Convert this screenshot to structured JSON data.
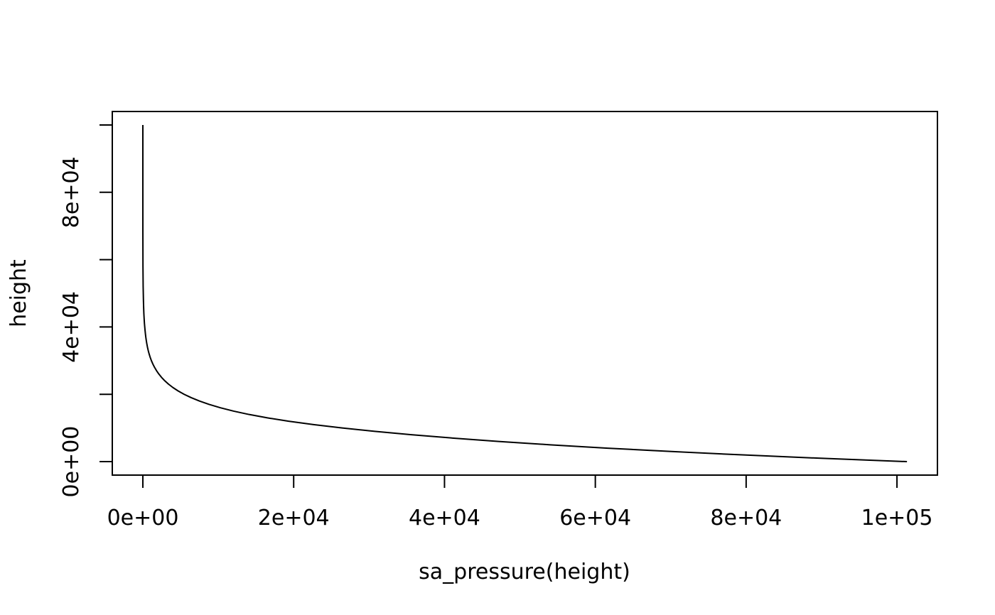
{
  "chart_data": {
    "type": "line",
    "title": "",
    "xlabel": "sa_pressure(height)",
    "ylabel": "height",
    "xlim": [
      -4052.5,
      105366.4
    ],
    "ylim": [
      -4000,
      104000
    ],
    "grid": false,
    "legend": "none",
    "x_ticks": [
      {
        "value": 0,
        "label": "0e+00"
      },
      {
        "value": 20000,
        "label": "2e+04"
      },
      {
        "value": 40000,
        "label": "4e+04"
      },
      {
        "value": 60000,
        "label": "6e+04"
      },
      {
        "value": 80000,
        "label": "8e+04"
      },
      {
        "value": 100000,
        "label": "1e+05"
      }
    ],
    "y_ticks": [
      {
        "value": 0,
        "label": "0e+00"
      },
      {
        "value": 20000,
        "label": ""
      },
      {
        "value": 40000,
        "label": "4e+04"
      },
      {
        "value": 60000,
        "label": ""
      },
      {
        "value": 80000,
        "label": "8e+04"
      },
      {
        "value": 100000,
        "label": ""
      }
    ],
    "series": [
      {
        "color": "#000000",
        "x": [
          101325,
          89875,
          79495,
          70108,
          61640,
          54019,
          47181,
          41060,
          35599,
          30742,
          26436,
          22632,
          19330,
          16510,
          14102,
          12045,
          10287,
          8787,
          7505,
          6410,
          5475,
          4677,
          3995,
          3412,
          2915,
          2490,
          2127,
          1817,
          1552,
          1326,
          1132,
          969,
          831,
          713,
          612,
          526,
          453,
          390,
          337,
          291,
          252,
          212,
          170,
          133,
          101,
          76,
          40,
          15,
          3,
          0.3,
          0
        ],
        "y": [
          0,
          1000,
          2000,
          3000,
          4000,
          5000,
          6000,
          7000,
          8000,
          9000,
          10000,
          11000,
          12000,
          13000,
          14000,
          15000,
          16000,
          17000,
          18000,
          19000,
          20000,
          21000,
          22000,
          23000,
          24000,
          25000,
          26000,
          27000,
          28000,
          29000,
          30000,
          31000,
          32000,
          33000,
          34000,
          35000,
          36000,
          37000,
          38000,
          39000,
          40000,
          41000,
          42500,
          44000,
          46000,
          48000,
          52000,
          58000,
          68000,
          85000,
          100000
        ]
      }
    ]
  }
}
